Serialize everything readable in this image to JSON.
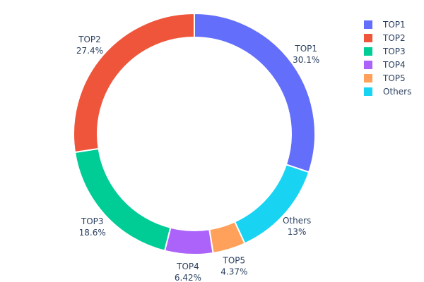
{
  "chart_data": {
    "type": "pie",
    "hole": true,
    "categories": [
      "TOP1",
      "TOP2",
      "TOP3",
      "TOP4",
      "TOP5",
      "Others"
    ],
    "values": [
      30.1,
      27.4,
      18.6,
      6.42,
      4.37,
      13
    ],
    "value_labels": [
      "30.1%",
      "27.4%",
      "18.6%",
      "6.42%",
      "4.37%",
      "13%"
    ],
    "colors": [
      "#636efa",
      "#ef553b",
      "#00cc96",
      "#ab63fa",
      "#ffa15a",
      "#19d3f3"
    ],
    "clockwise_order": [
      "TOP1",
      "Others",
      "TOP5",
      "TOP4",
      "TOP3",
      "TOP2"
    ],
    "legend_position": "top-right"
  }
}
